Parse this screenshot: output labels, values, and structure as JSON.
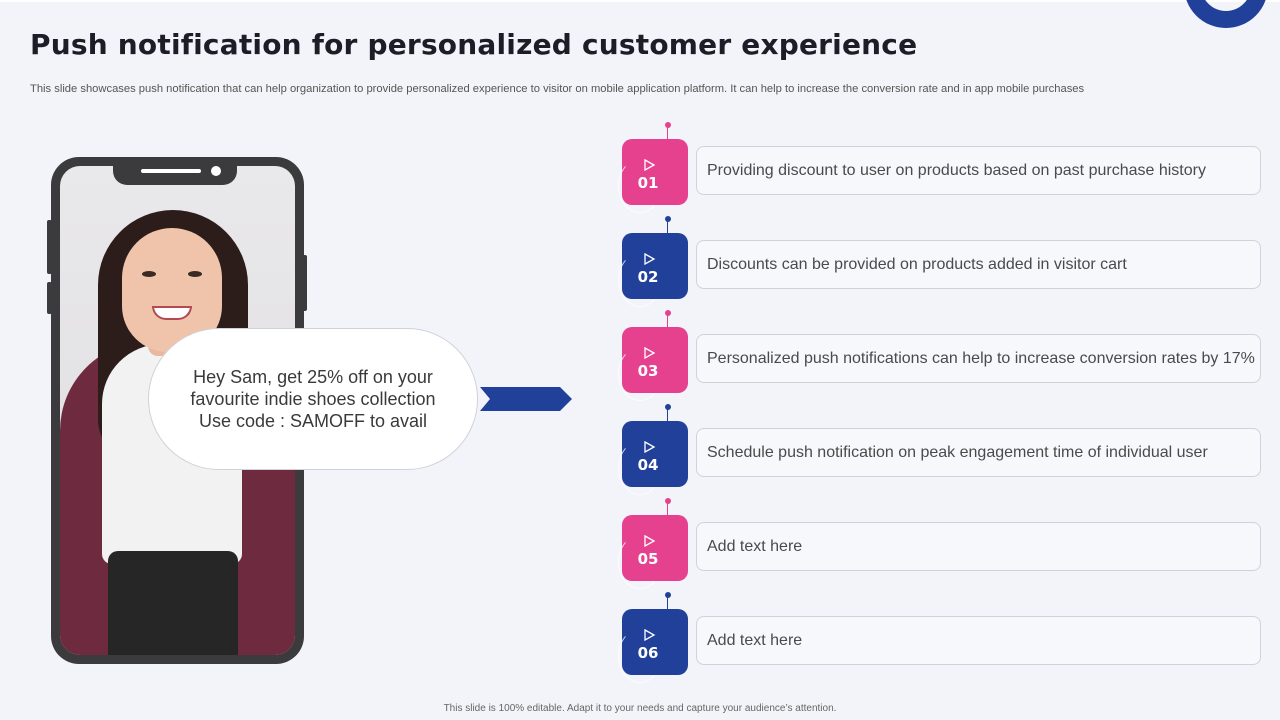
{
  "slide": {
    "title": "Push notification for personalized customer experience",
    "subtitle": "This slide showcases push notification that can help organization to provide personalized experience to visitor on mobile application platform. It can help to increase the conversion rate and in app mobile purchases",
    "footer": "This slide is 100% editable.  Adapt it to your needs and capture your audience’s attention."
  },
  "notification": {
    "line1": "Hey Sam, get 25% off on your",
    "line2": "favourite indie shoes collection",
    "line3": "Use code : SAMOFF to avail"
  },
  "colors": {
    "pink": "#e6418e",
    "blue": "#21409a",
    "background": "#f3f4f9"
  },
  "steps": [
    {
      "number": "01",
      "text": "Providing discount to user on products based on past purchase history",
      "color": "pink"
    },
    {
      "number": "02",
      "text": "Discounts can be provided on products added in visitor cart",
      "color": "blue"
    },
    {
      "number": "03",
      "text": "Personalized push notifications can help to increase conversion rates by 17%",
      "color": "pink"
    },
    {
      "number": "04",
      "text": "Schedule push notification on peak engagement time of individual user",
      "color": "blue"
    },
    {
      "number": "05",
      "text": "Add text here",
      "color": "pink"
    },
    {
      "number": "06",
      "text": "Add text here",
      "color": "blue"
    }
  ],
  "icons": {
    "corner": "ring-decoration-icon",
    "arrow": "chevron-arrow-icon",
    "step": "play-icon"
  }
}
